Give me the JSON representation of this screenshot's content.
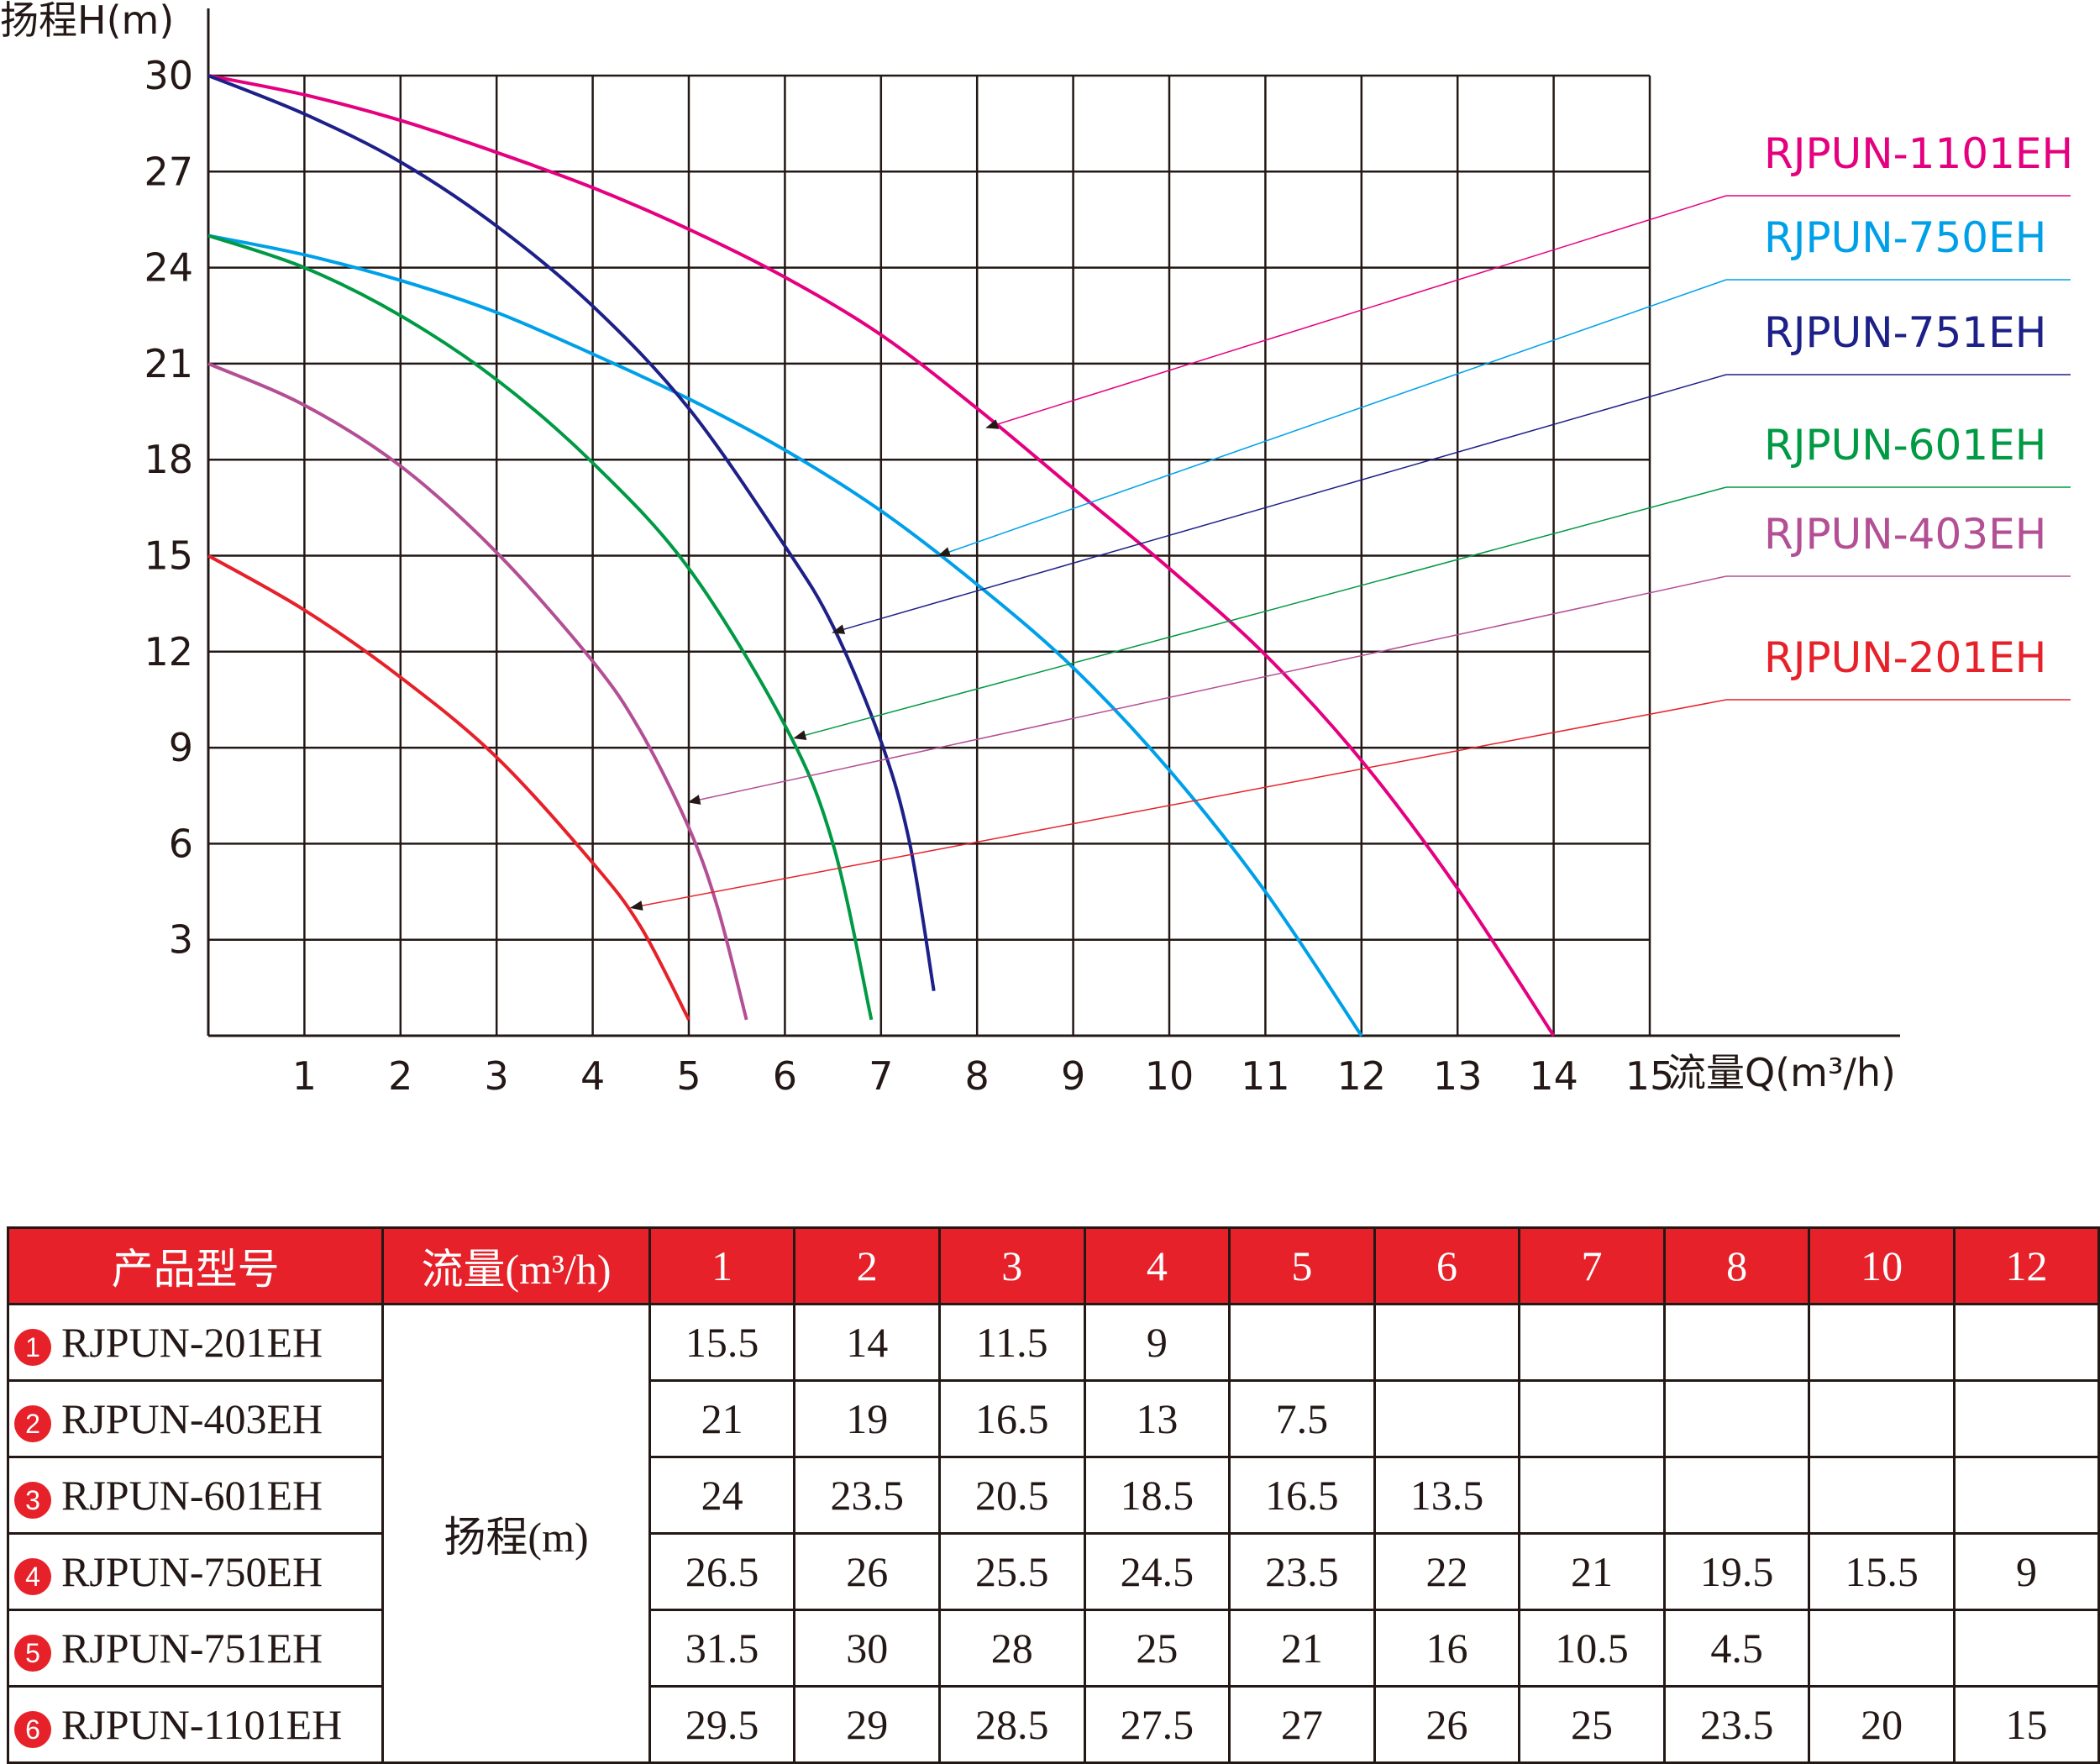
{
  "chart_data": {
    "type": "line",
    "ylabel": "扬程H(m)",
    "xlabel": "流量Q(m³/h)",
    "xlim": [
      0,
      15
    ],
    "ylim": [
      0,
      30
    ],
    "x_ticks": [
      "1",
      "2",
      "3",
      "4",
      "5",
      "6",
      "7",
      "8",
      "9",
      "10",
      "11",
      "12",
      "13",
      "14",
      "15"
    ],
    "y_ticks": [
      "3",
      "6",
      "9",
      "12",
      "15",
      "18",
      "21",
      "24",
      "27",
      "30"
    ],
    "grid": true,
    "legend_position": "right",
    "series": [
      {
        "name": "RJPUN-1101EH",
        "color": "#e4007f",
        "points": [
          [
            0,
            30
          ],
          [
            1,
            29.4
          ],
          [
            2,
            28.6
          ],
          [
            3,
            27.6
          ],
          [
            4,
            26.5
          ],
          [
            5,
            25.2
          ],
          [
            6,
            23.7
          ],
          [
            7,
            21.9
          ],
          [
            8,
            19.6
          ],
          [
            9,
            17.1
          ],
          [
            10,
            14.6
          ],
          [
            11,
            11.9
          ],
          [
            12,
            8.6
          ],
          [
            13,
            4.6
          ],
          [
            14,
            0
          ]
        ],
        "arrow_at": [
          8.1,
          19.0
        ]
      },
      {
        "name": "RJPUN-750EH",
        "color": "#00a0e9",
        "points": [
          [
            0,
            25
          ],
          [
            1,
            24.4
          ],
          [
            2,
            23.6
          ],
          [
            3,
            22.6
          ],
          [
            4,
            21.3
          ],
          [
            5,
            19.9
          ],
          [
            6,
            18.3
          ],
          [
            7,
            16.4
          ],
          [
            8,
            14.1
          ],
          [
            9,
            11.5
          ],
          [
            10,
            8.3
          ],
          [
            11,
            4.5
          ],
          [
            12,
            0
          ]
        ],
        "arrow_at": [
          7.6,
          15.0
        ]
      },
      {
        "name": "RJPUN-751EH",
        "color": "#1d2088",
        "points": [
          [
            0,
            30
          ],
          [
            1,
            28.8
          ],
          [
            2,
            27.3
          ],
          [
            3,
            25.3
          ],
          [
            4,
            22.8
          ],
          [
            5,
            19.6
          ],
          [
            6,
            15.3
          ],
          [
            6.5,
            12.8
          ],
          [
            7,
            9.2
          ],
          [
            7.3,
            6
          ],
          [
            7.55,
            1.4
          ]
        ],
        "arrow_at": [
          6.5,
          12.6
        ]
      },
      {
        "name": "RJPUN-601EH",
        "color": "#009944",
        "points": [
          [
            0,
            25
          ],
          [
            1,
            24
          ],
          [
            2,
            22.5
          ],
          [
            3,
            20.5
          ],
          [
            4,
            17.9
          ],
          [
            5,
            14.6
          ],
          [
            6,
            9.7
          ],
          [
            6.5,
            6
          ],
          [
            6.9,
            0.5
          ]
        ],
        "arrow_at": [
          6.1,
          9.3
        ]
      },
      {
        "name": "RJPUN-403EH",
        "color": "#b34f94",
        "points": [
          [
            0,
            21
          ],
          [
            1,
            19.7
          ],
          [
            2,
            17.8
          ],
          [
            3,
            15.1
          ],
          [
            4,
            11.7
          ],
          [
            4.5,
            9.5
          ],
          [
            5,
            6.5
          ],
          [
            5.3,
            4
          ],
          [
            5.6,
            0.5
          ]
        ],
        "arrow_at": [
          5.0,
          7.3
        ]
      },
      {
        "name": "RJPUN-201EH",
        "color": "#e62129",
        "points": [
          [
            0,
            15
          ],
          [
            1,
            13.3
          ],
          [
            2,
            11.2
          ],
          [
            3,
            8.7
          ],
          [
            4,
            5.4
          ],
          [
            4.5,
            3.4
          ],
          [
            5,
            0.5
          ]
        ],
        "arrow_at": [
          4.4,
          4.0
        ]
      }
    ]
  },
  "table": {
    "header_model": "产品型号",
    "header_flow": "流量(m³/h)",
    "flow_values": [
      "1",
      "2",
      "3",
      "4",
      "5",
      "6",
      "7",
      "8",
      "10",
      "12"
    ],
    "head_label": "扬程(m)",
    "rows": [
      {
        "badge": "1",
        "model": "RJPUN-201EH",
        "values": [
          "15.5",
          "14",
          "11.5",
          "9",
          "",
          "",
          "",
          "",
          "",
          ""
        ]
      },
      {
        "badge": "2",
        "model": "RJPUN-403EH",
        "values": [
          "21",
          "19",
          "16.5",
          "13",
          "7.5",
          "",
          "",
          "",
          "",
          ""
        ]
      },
      {
        "badge": "3",
        "model": "RJPUN-601EH",
        "values": [
          "24",
          "23.5",
          "20.5",
          "18.5",
          "16.5",
          "13.5",
          "",
          "",
          "",
          ""
        ]
      },
      {
        "badge": "4",
        "model": "RJPUN-750EH",
        "values": [
          "26.5",
          "26",
          "25.5",
          "24.5",
          "23.5",
          "22",
          "21",
          "19.5",
          "15.5",
          "9"
        ]
      },
      {
        "badge": "5",
        "model": "RJPUN-751EH",
        "values": [
          "31.5",
          "30",
          "28",
          "25",
          "21",
          "16",
          "10.5",
          "4.5",
          "",
          ""
        ]
      },
      {
        "badge": "6",
        "model": "RJPUN-1101EH",
        "values": [
          "29.5",
          "29",
          "28.5",
          "27.5",
          "27",
          "26",
          "25",
          "23.5",
          "20",
          "15"
        ]
      }
    ]
  }
}
